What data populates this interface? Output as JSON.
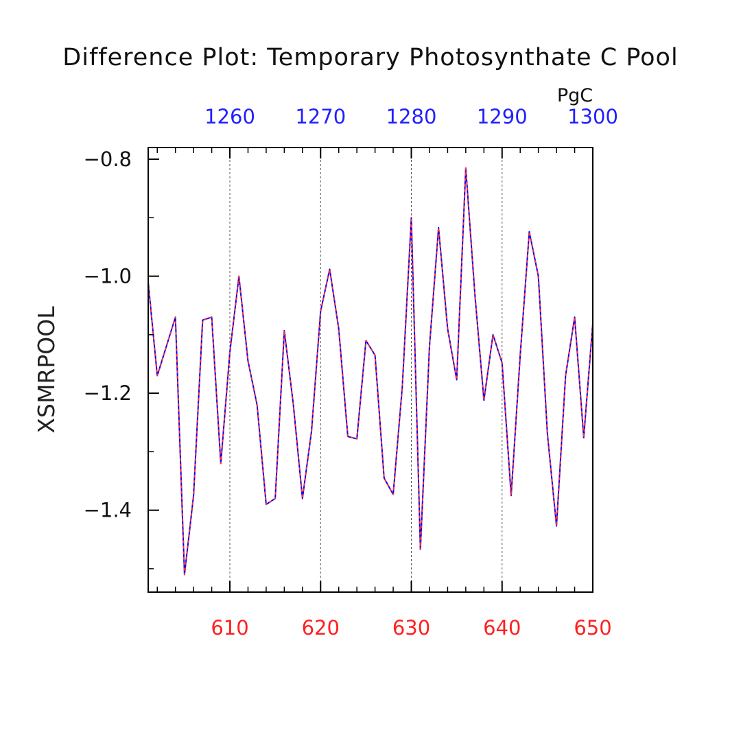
{
  "chart_data": {
    "type": "line",
    "title": "Difference Plot: Temporary Photosynthate C Pool",
    "ylabel": "XSMRPOOL",
    "top_axis_unit": "PgC",
    "colors": {
      "bottom_axis": "#ff2020",
      "top_axis": "#2020ff",
      "series_a": "#0000ff",
      "series_b": "#ff3030",
      "frame": "#000000",
      "grid": "#555555"
    },
    "xlim": [
      601,
      650
    ],
    "ylim": [
      -1.54,
      -0.78
    ],
    "top_xlim": [
      1251,
      1300
    ],
    "xticks_major": [
      610,
      620,
      630,
      640,
      650
    ],
    "xticks_major_labels": [
      "610",
      "620",
      "630",
      "640",
      "650"
    ],
    "xticks_minor": [
      602,
      604,
      606,
      608,
      612,
      614,
      616,
      618,
      622,
      624,
      626,
      628,
      632,
      634,
      636,
      638,
      642,
      644,
      646,
      648
    ],
    "top_xticks_major": [
      1260,
      1270,
      1280,
      1290,
      1300
    ],
    "top_xticks_major_labels": [
      "1260",
      "1270",
      "1280",
      "1290",
      "1300"
    ],
    "top_xticks_minor": [
      1252,
      1254,
      1256,
      1258,
      1262,
      1264,
      1266,
      1268,
      1272,
      1274,
      1276,
      1278,
      1282,
      1284,
      1286,
      1288,
      1292,
      1294,
      1296,
      1298
    ],
    "yticks_major": [
      -1.4,
      -1.2,
      -1.0,
      -0.8
    ],
    "yticks_major_labels": [
      "−1.4",
      "−1.2",
      "−1.0",
      "−0.8"
    ],
    "yticks_minor": [
      -1.5,
      -1.3,
      -1.1,
      -0.9
    ],
    "grid": "vertical dashed at major x ticks",
    "x": [
      601,
      602,
      603,
      604,
      605,
      606,
      607,
      608,
      609,
      610,
      611,
      612,
      613,
      614,
      615,
      616,
      617,
      618,
      619,
      620,
      621,
      622,
      623,
      624,
      625,
      626,
      627,
      628,
      629,
      630,
      631,
      632,
      633,
      634,
      635,
      636,
      637,
      638,
      639,
      640,
      641,
      642,
      643,
      644,
      645,
      646,
      647,
      648,
      649,
      650
    ],
    "series": [
      {
        "values": [
          -1.01,
          -1.17,
          -1.12,
          -1.07,
          -1.51,
          -1.375,
          -1.075,
          -1.07,
          -1.32,
          -1.13,
          -1.0,
          -1.145,
          -1.22,
          -1.39,
          -1.38,
          -1.093,
          -1.22,
          -1.38,
          -1.265,
          -1.06,
          -0.988,
          -1.09,
          -1.274,
          -1.278,
          -1.11,
          -1.135,
          -1.345,
          -1.373,
          -1.19,
          -0.9,
          -1.467,
          -1.12,
          -0.917,
          -1.09,
          -1.177,
          -0.815,
          -1.03,
          -1.212,
          -1.1,
          -1.148,
          -1.375,
          -1.135,
          -0.924,
          -1.0,
          -1.27,
          -1.427,
          -1.17,
          -1.07,
          -1.276,
          -1.08
        ]
      },
      {
        "values": [
          -1.01,
          -1.17,
          -1.12,
          -1.07,
          -1.51,
          -1.375,
          -1.075,
          -1.07,
          -1.32,
          -1.13,
          -1.0,
          -1.145,
          -1.22,
          -1.39,
          -1.38,
          -1.093,
          -1.22,
          -1.38,
          -1.265,
          -1.06,
          -0.988,
          -1.09,
          -1.274,
          -1.278,
          -1.11,
          -1.135,
          -1.345,
          -1.373,
          -1.19,
          -0.9,
          -1.467,
          -1.12,
          -0.917,
          -1.09,
          -1.177,
          -0.815,
          -1.03,
          -1.212,
          -1.1,
          -1.148,
          -1.375,
          -1.135,
          -0.924,
          -1.0,
          -1.27,
          -1.427,
          -1.17,
          -1.07,
          -1.276,
          -1.08
        ]
      }
    ]
  }
}
